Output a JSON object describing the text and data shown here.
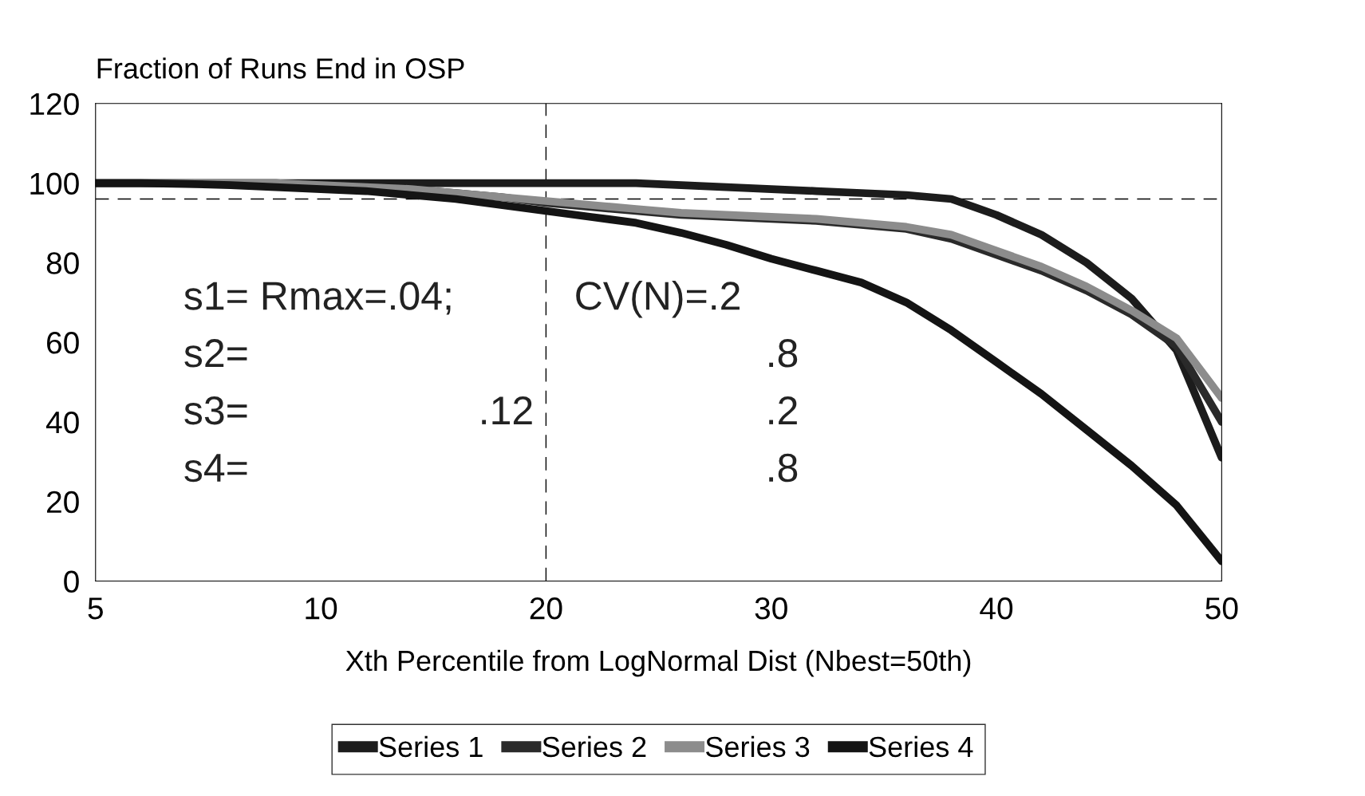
{
  "chart_data": {
    "type": "line",
    "title": "Fraction of Runs End in OSP",
    "xlabel": "Xth Percentile from LogNormal Dist (Nbest=50th)",
    "categories": [
      "5",
      null,
      null,
      null,
      null,
      "10",
      null,
      null,
      null,
      null,
      "20",
      null,
      null,
      null,
      null,
      "30",
      null,
      null,
      null,
      null,
      "40",
      null,
      null,
      null,
      null,
      "50"
    ],
    "series": [
      {
        "name": "Series 1",
        "color": "#1c1c1c",
        "values": [
          100,
          100,
          100,
          100,
          100,
          100,
          100,
          100,
          100,
          100,
          100,
          100,
          100,
          99.5,
          99,
          98.5,
          98,
          97.5,
          97,
          96,
          92,
          87,
          80,
          71,
          58,
          31
        ]
      },
      {
        "name": "Series 2",
        "color": "#2a2a2a",
        "values": [
          100,
          100,
          100,
          100,
          100,
          99.5,
          99,
          98.5,
          97.5,
          96.5,
          95,
          94,
          93,
          92,
          91.5,
          91,
          90.5,
          89.5,
          88.5,
          86,
          82,
          78,
          73,
          67,
          59,
          40
        ]
      },
      {
        "name": "Series 3",
        "color": "#8c8c8c",
        "values": [
          100,
          100,
          100,
          100,
          100,
          99.5,
          99,
          98.5,
          97.5,
          96.5,
          95.5,
          94.5,
          93.5,
          92.5,
          92,
          91.5,
          91,
          90,
          89,
          87,
          83,
          79,
          74,
          68,
          61,
          46
        ]
      },
      {
        "name": "Series 4",
        "color": "#141414",
        "values": [
          100,
          100,
          99.8,
          99.5,
          99,
          98.5,
          98,
          97,
          96,
          94.5,
          93,
          91.5,
          90,
          87.5,
          84.5,
          81,
          78,
          75,
          70,
          63,
          55,
          47,
          38,
          29,
          19,
          5
        ]
      }
    ],
    "ylim": [
      0,
      120
    ],
    "yticks": [
      0,
      20,
      40,
      60,
      80,
      100,
      120
    ],
    "ref_lines": [
      {
        "axis": "y",
        "value": 96,
        "line_style": "dashed",
        "color": "#000000"
      },
      {
        "axis": "x",
        "value": "20",
        "line_style": "dashed",
        "color": "#000000"
      }
    ],
    "annotations": [
      "s1= Rmax=.04;",
      "CV(N)=.2",
      "s2=",
      ".8",
      "s3=",
      ".12",
      ".2",
      "s4=",
      ".8"
    ],
    "legend": "bottom",
    "grid": false,
    "marker": "none",
    "line_style": "solid"
  }
}
